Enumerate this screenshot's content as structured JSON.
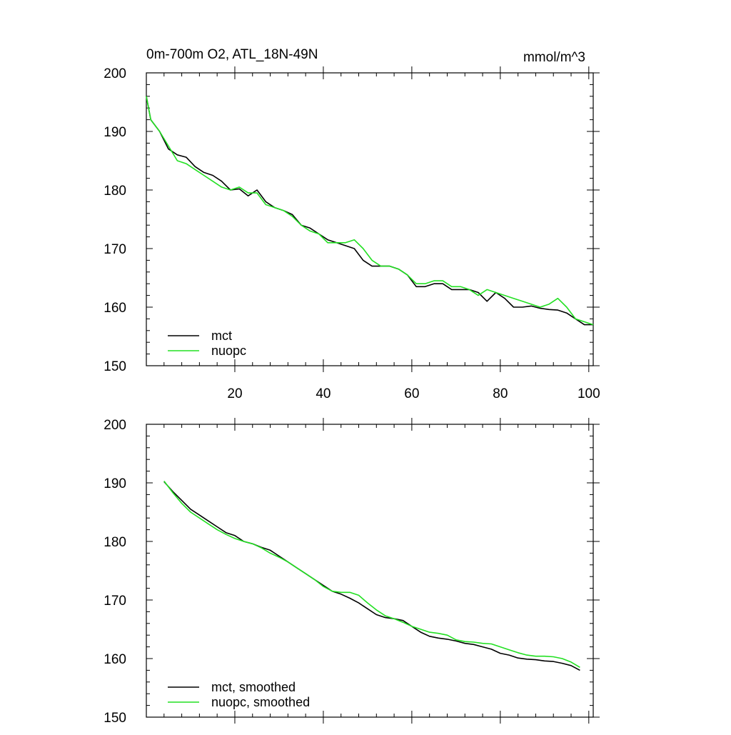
{
  "colors": {
    "mct": "#000000",
    "nuopc": "#22e022",
    "axis": "#000000",
    "background": "#ffffff"
  },
  "chart_data": [
    {
      "type": "line",
      "title": "0m-700m O2, ATL_18N-49N",
      "units": "mmol/m^3",
      "xlim": [
        0,
        101
      ],
      "ylim": [
        150,
        200
      ],
      "y_ticks": [
        150,
        160,
        170,
        180,
        190,
        200
      ],
      "y_tick_labels": [
        "150",
        "160",
        "170",
        "180",
        "190",
        "200"
      ],
      "x_ticks": [
        20,
        40,
        60,
        80,
        100
      ],
      "x_tick_labels": [
        "20",
        "40",
        "60",
        "80",
        "100"
      ],
      "legend": {
        "position": "bottom-left",
        "entries": [
          "mct",
          "nuopc"
        ]
      },
      "series": [
        {
          "name": "mct",
          "color": "#000000",
          "points": [
            [
              0,
              196
            ],
            [
              1,
              192
            ],
            [
              3,
              190
            ],
            [
              5,
              187
            ],
            [
              7,
              186
            ],
            [
              9,
              185.6
            ],
            [
              11,
              184
            ],
            [
              13,
              183
            ],
            [
              15,
              182.5
            ],
            [
              17,
              181.5
            ],
            [
              19,
              180
            ],
            [
              21,
              180.2
            ],
            [
              23,
              179
            ],
            [
              25,
              180
            ],
            [
              27,
              178
            ],
            [
              29,
              177
            ],
            [
              31,
              176.5
            ],
            [
              33,
              175.8
            ],
            [
              35,
              174
            ],
            [
              37,
              173.5
            ],
            [
              39,
              172.5
            ],
            [
              41,
              171.5
            ],
            [
              43,
              171
            ],
            [
              45,
              170.5
            ],
            [
              47,
              170
            ],
            [
              49,
              168
            ],
            [
              51,
              167
            ],
            [
              53,
              167
            ],
            [
              55,
              167
            ],
            [
              57,
              166.5
            ],
            [
              59,
              165.5
            ],
            [
              61,
              163.5
            ],
            [
              63,
              163.5
            ],
            [
              65,
              164
            ],
            [
              67,
              164
            ],
            [
              69,
              163
            ],
            [
              71,
              163
            ],
            [
              73,
              163
            ],
            [
              75,
              162.5
            ],
            [
              77,
              161
            ],
            [
              79,
              162.5
            ],
            [
              81,
              161.5
            ],
            [
              83,
              160
            ],
            [
              85,
              160
            ],
            [
              87,
              160.2
            ],
            [
              89,
              159.8
            ],
            [
              91,
              159.6
            ],
            [
              93,
              159.5
            ],
            [
              95,
              159
            ],
            [
              97,
              158
            ],
            [
              99,
              157
            ],
            [
              101,
              157
            ]
          ]
        },
        {
          "name": "nuopc",
          "color": "#22e022",
          "points": [
            [
              0,
              196
            ],
            [
              1,
              192
            ],
            [
              3,
              190
            ],
            [
              5,
              187.5
            ],
            [
              7,
              185
            ],
            [
              9,
              184.5
            ],
            [
              11,
              183.5
            ],
            [
              13,
              182.5
            ],
            [
              15,
              181.5
            ],
            [
              17,
              180.5
            ],
            [
              19,
              180
            ],
            [
              21,
              180.5
            ],
            [
              23,
              179.5
            ],
            [
              25,
              179.5
            ],
            [
              27,
              177.5
            ],
            [
              29,
              177
            ],
            [
              31,
              176.5
            ],
            [
              33,
              175.5
            ],
            [
              35,
              174
            ],
            [
              37,
              173
            ],
            [
              39,
              172.5
            ],
            [
              41,
              171
            ],
            [
              43,
              171
            ],
            [
              45,
              171
            ],
            [
              47,
              171.5
            ],
            [
              49,
              170
            ],
            [
              51,
              168
            ],
            [
              53,
              167
            ],
            [
              55,
              167
            ],
            [
              57,
              166.5
            ],
            [
              59,
              165.5
            ],
            [
              61,
              164
            ],
            [
              63,
              164
            ],
            [
              65,
              164.5
            ],
            [
              67,
              164.5
            ],
            [
              69,
              163.5
            ],
            [
              71,
              163.5
            ],
            [
              73,
              163
            ],
            [
              75,
              162
            ],
            [
              77,
              163
            ],
            [
              79,
              162.5
            ],
            [
              81,
              162
            ],
            [
              83,
              161.5
            ],
            [
              85,
              161
            ],
            [
              87,
              160.5
            ],
            [
              89,
              160
            ],
            [
              91,
              160.5
            ],
            [
              93,
              161.5
            ],
            [
              95,
              160
            ],
            [
              97,
              158
            ],
            [
              99,
              157.5
            ],
            [
              101,
              157
            ]
          ]
        }
      ]
    },
    {
      "type": "line",
      "xlim": [
        0,
        101
      ],
      "ylim": [
        150,
        200
      ],
      "y_ticks": [
        150,
        160,
        170,
        180,
        190,
        200
      ],
      "y_tick_labels": [
        "150",
        "160",
        "170",
        "180",
        "190",
        "200"
      ],
      "x_ticks": [
        20,
        40,
        60,
        80,
        100
      ],
      "legend": {
        "position": "bottom-left",
        "entries": [
          "mct, smoothed",
          "nuopc, smoothed"
        ]
      },
      "series": [
        {
          "name": "mct, smoothed",
          "color": "#000000",
          "points": [
            [
              4,
              190.2
            ],
            [
              6,
              188.5
            ],
            [
              8,
              187
            ],
            [
              10,
              185.5
            ],
            [
              12,
              184.5
            ],
            [
              14,
              183.5
            ],
            [
              16,
              182.5
            ],
            [
              18,
              181.5
            ],
            [
              20,
              181
            ],
            [
              22,
              180
            ],
            [
              24,
              179.6
            ],
            [
              26,
              179
            ],
            [
              28,
              178.5
            ],
            [
              30,
              177.5
            ],
            [
              32,
              176.5
            ],
            [
              34,
              175.5
            ],
            [
              36,
              174.5
            ],
            [
              38,
              173.5
            ],
            [
              40,
              172.5
            ],
            [
              42,
              171.5
            ],
            [
              44,
              171
            ],
            [
              46,
              170.3
            ],
            [
              48,
              169.5
            ],
            [
              50,
              168.5
            ],
            [
              52,
              167.5
            ],
            [
              54,
              167
            ],
            [
              56,
              166.8
            ],
            [
              58,
              166.5
            ],
            [
              60,
              165.5
            ],
            [
              62,
              164.5
            ],
            [
              64,
              163.8
            ],
            [
              66,
              163.5
            ],
            [
              68,
              163.3
            ],
            [
              70,
              163
            ],
            [
              72,
              162.6
            ],
            [
              74,
              162.4
            ],
            [
              76,
              162
            ],
            [
              78,
              161.6
            ],
            [
              80,
              160.9
            ],
            [
              82,
              160.6
            ],
            [
              84,
              160.1
            ],
            [
              86,
              159.9
            ],
            [
              88,
              159.8
            ],
            [
              90,
              159.6
            ],
            [
              92,
              159.5
            ],
            [
              94,
              159.2
            ],
            [
              96,
              158.8
            ],
            [
              98,
              158
            ]
          ]
        },
        {
          "name": "nuopc, smoothed",
          "color": "#22e022",
          "points": [
            [
              4,
              190.3
            ],
            [
              6,
              188.3
            ],
            [
              8,
              186.5
            ],
            [
              10,
              185
            ],
            [
              12,
              184
            ],
            [
              14,
              183
            ],
            [
              16,
              182
            ],
            [
              18,
              181.2
            ],
            [
              20,
              180.5
            ],
            [
              22,
              180
            ],
            [
              24,
              179.6
            ],
            [
              26,
              178.9
            ],
            [
              28,
              178
            ],
            [
              30,
              177.3
            ],
            [
              32,
              176.5
            ],
            [
              34,
              175.5
            ],
            [
              36,
              174.5
            ],
            [
              38,
              173.5
            ],
            [
              40,
              172.3
            ],
            [
              42,
              171.5
            ],
            [
              44,
              171.3
            ],
            [
              46,
              171.3
            ],
            [
              48,
              170.8
            ],
            [
              50,
              169.5
            ],
            [
              52,
              168.3
            ],
            [
              54,
              167.3
            ],
            [
              56,
              166.8
            ],
            [
              58,
              166.2
            ],
            [
              60,
              165.5
            ],
            [
              62,
              165
            ],
            [
              64,
              164.5
            ],
            [
              66,
              164.3
            ],
            [
              68,
              164
            ],
            [
              70,
              163.2
            ],
            [
              72,
              162.9
            ],
            [
              74,
              162.8
            ],
            [
              76,
              162.6
            ],
            [
              78,
              162.5
            ],
            [
              80,
              162
            ],
            [
              82,
              161.5
            ],
            [
              84,
              161
            ],
            [
              86,
              160.6
            ],
            [
              88,
              160.4
            ],
            [
              90,
              160.4
            ],
            [
              92,
              160.3
            ],
            [
              94,
              160
            ],
            [
              96,
              159.4
            ],
            [
              98,
              158.5
            ]
          ]
        }
      ]
    }
  ]
}
